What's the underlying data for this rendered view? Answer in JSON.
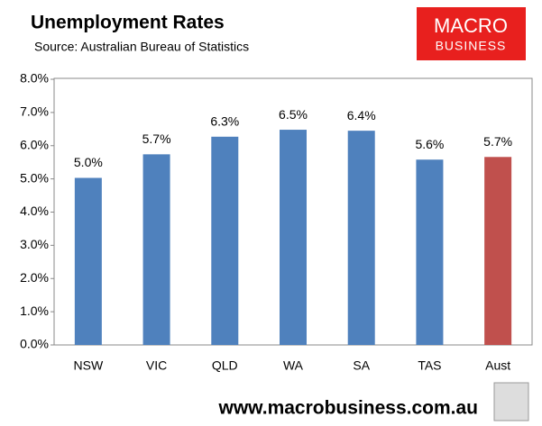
{
  "chart_data": {
    "type": "bar",
    "title": "Unemployment Rates",
    "subtitle": "Source: Australian Bureau of Statistics",
    "logo": [
      "MACRO",
      "BUSINESS"
    ],
    "footer": "www.macrobusiness.com.au",
    "categories": [
      "NSW",
      "VIC",
      "QLD",
      "WA",
      "SA",
      "TAS",
      "Aust"
    ],
    "values": [
      5.03,
      5.74,
      6.27,
      6.48,
      6.45,
      5.58,
      5.66
    ],
    "value_labels": [
      "5.0%",
      "5.7%",
      "6.3%",
      "6.5%",
      "6.4%",
      "5.6%",
      "5.7%"
    ],
    "colors": [
      "#4f81bd",
      "#4f81bd",
      "#4f81bd",
      "#4f81bd",
      "#4f81bd",
      "#4f81bd",
      "#c0504d"
    ],
    "ylim": [
      0,
      8
    ],
    "yticks": [
      {
        "value": 0,
        "label": "0.0%"
      },
      {
        "value": 1,
        "label": "1.0%"
      },
      {
        "value": 2,
        "label": "2.0%"
      },
      {
        "value": 3,
        "label": "3.0%"
      },
      {
        "value": 4,
        "label": "4.0%"
      },
      {
        "value": 5,
        "label": "5.0%"
      },
      {
        "value": 6,
        "label": "6.0%"
      },
      {
        "value": 7,
        "label": "7.0%"
      },
      {
        "value": 8,
        "label": "8.0%"
      }
    ],
    "grid": false
  }
}
